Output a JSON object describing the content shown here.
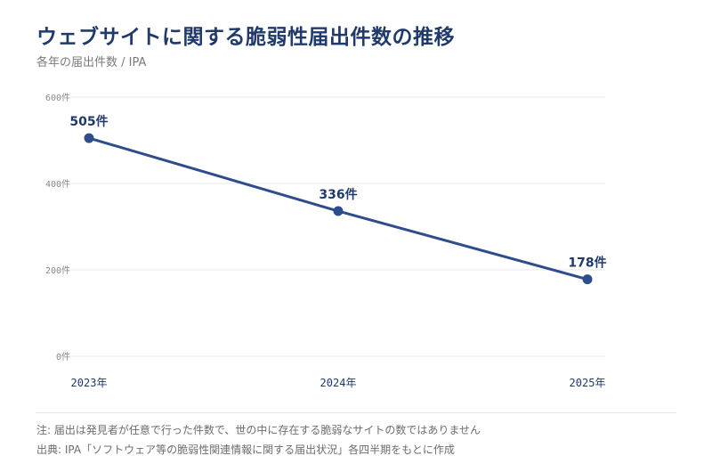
{
  "header": {
    "title": "ウェブサイトに関する脆弱性届出件数の推移",
    "subtitle": "各年の届出件数 / IPA"
  },
  "footer": {
    "note": "注: 届出は発見者が任意で行った件数で、世の中に存在する脆弱なサイトの数ではありません",
    "source": "出典: IPA「ソフトウェア等の脆弱性関連情報に関する届出状況」各四半期をもとに作成"
  },
  "colors": {
    "line": "#2e4d8c",
    "title": "#1f3a6b",
    "grid": "#e8e8e8",
    "axis_text": "#888888",
    "label_text": "#1f3a6b"
  },
  "chart_data": {
    "type": "line",
    "title": "ウェブサイトに関する脆弱性届出件数の推移",
    "subtitle": "各年の届出件数 / IPA",
    "categories": [
      "2023年",
      "2024年",
      "2025年"
    ],
    "values": [
      505,
      336,
      178
    ],
    "data_labels": [
      "505件",
      "336件",
      "178件"
    ],
    "y_ticks": [
      0,
      200,
      400,
      600
    ],
    "y_tick_labels": [
      "0件",
      "200件",
      "400件",
      "600件"
    ],
    "ylim": [
      0,
      600
    ],
    "grid": true,
    "legend": "none",
    "xlabel": "",
    "ylabel": ""
  }
}
